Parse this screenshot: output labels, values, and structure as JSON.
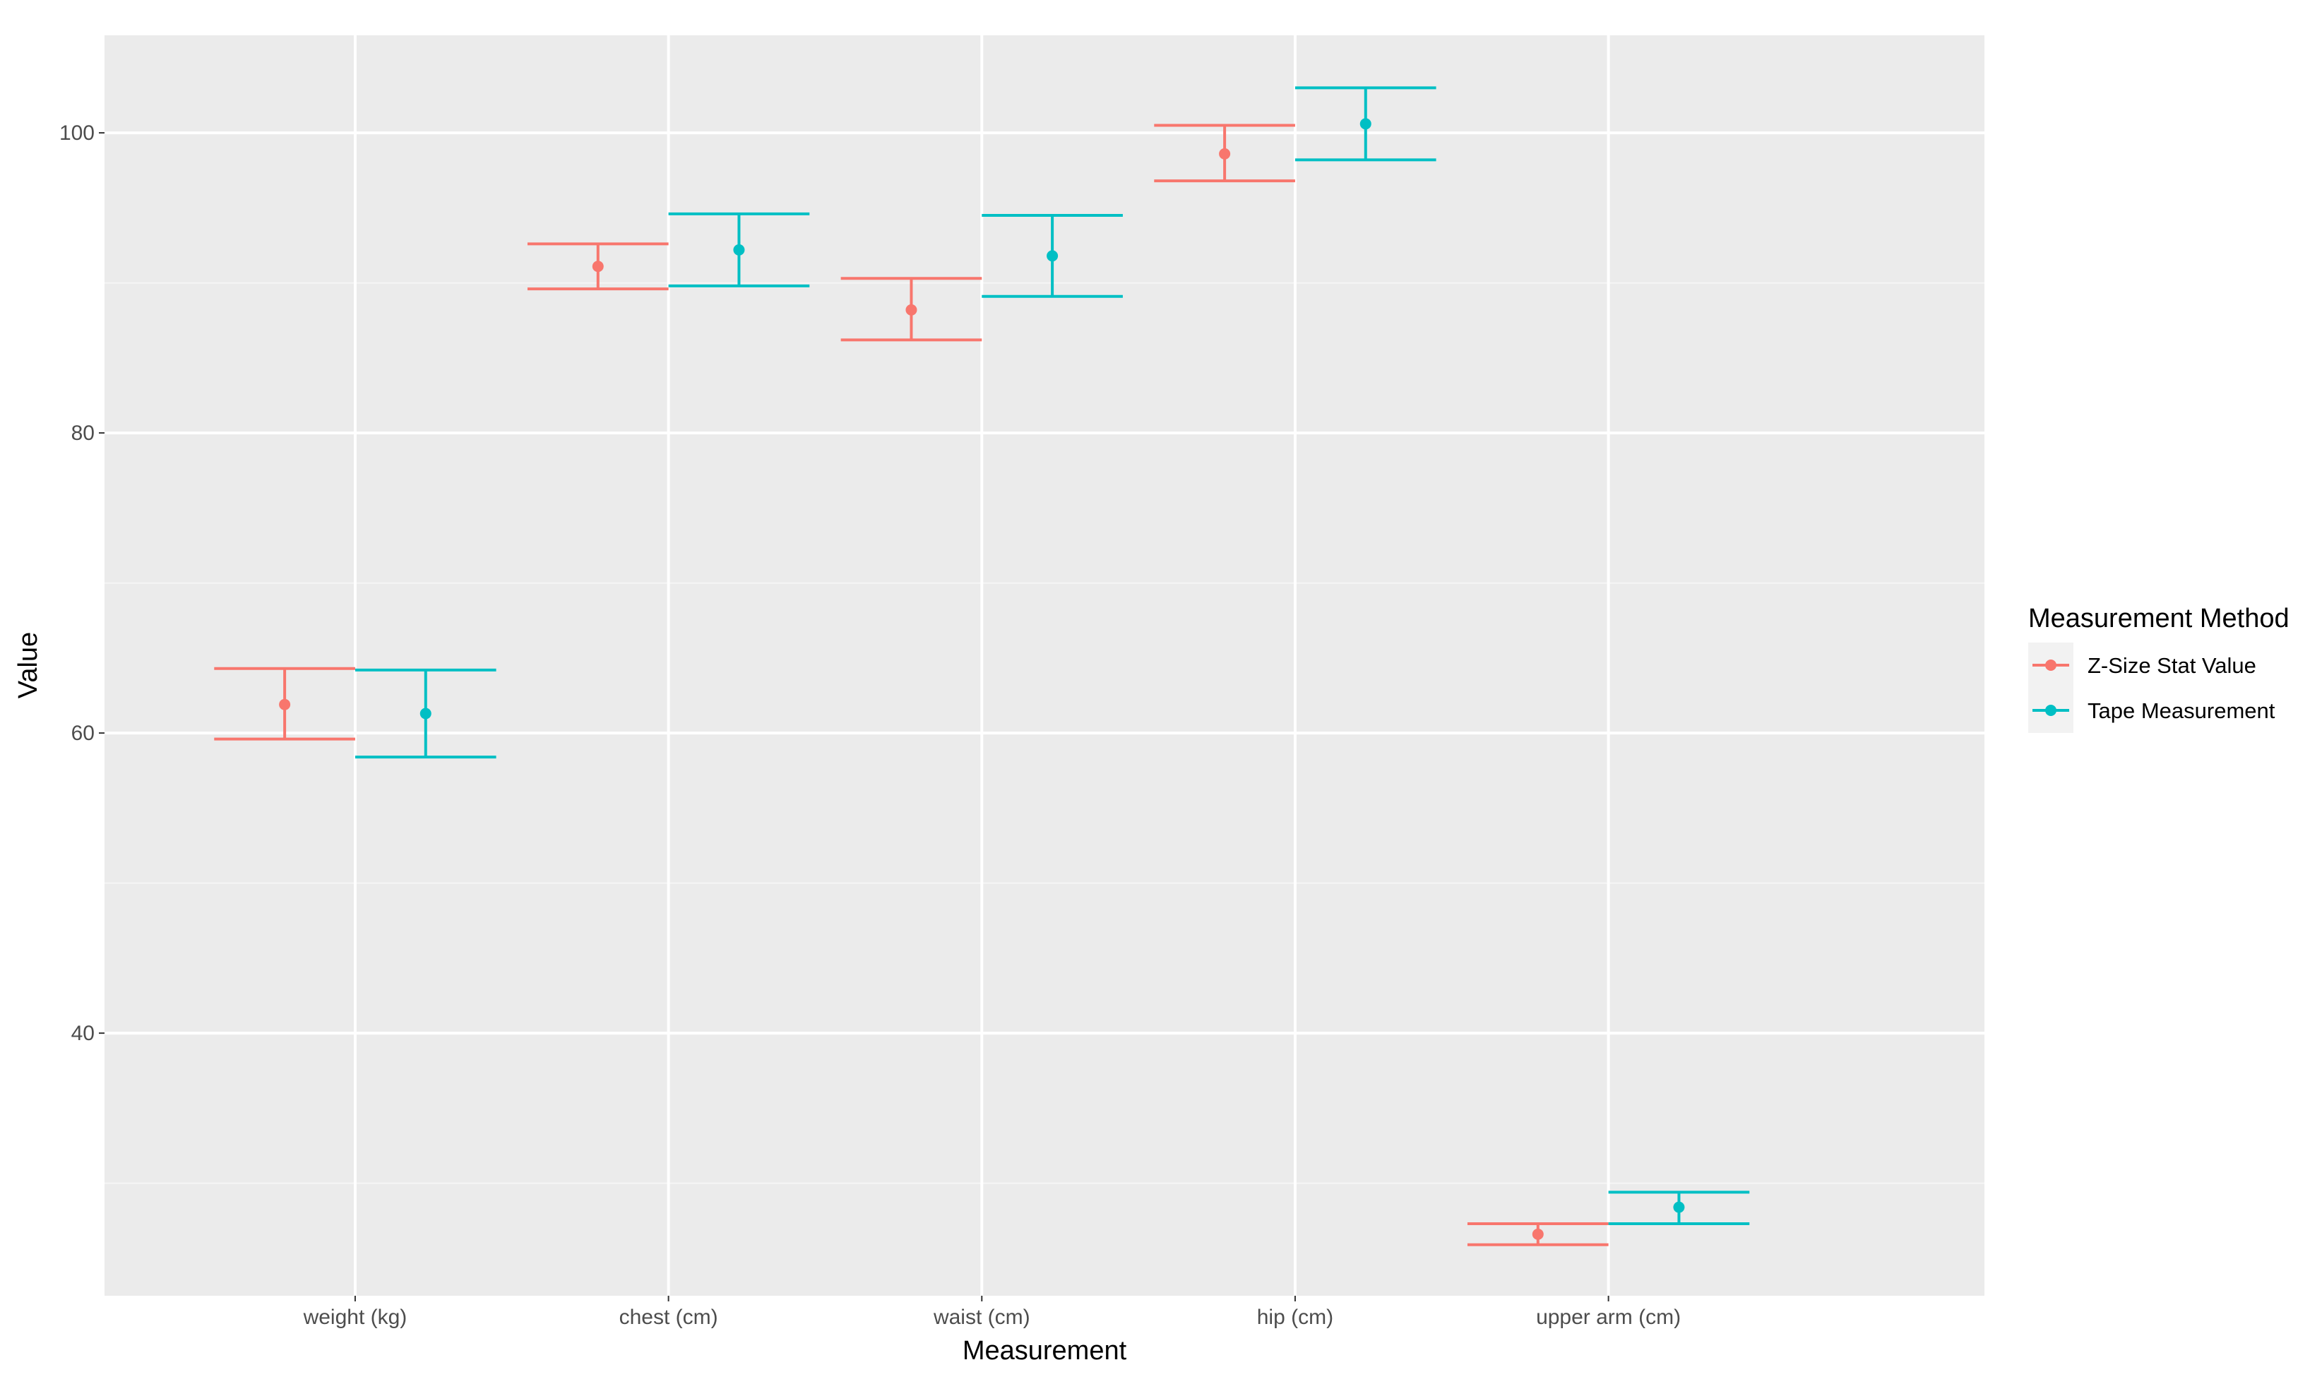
{
  "chart_data": {
    "type": "errorbar",
    "title": "",
    "xlabel": "Measurement",
    "ylabel": "Value",
    "ylim": [
      22.5,
      106.5
    ],
    "yticks": [
      40,
      60,
      80,
      100
    ],
    "y_minor_gridlines": [
      30,
      50,
      70,
      90
    ],
    "grid": true,
    "legend_title": "Measurement Method",
    "legend_position": "right",
    "categories": [
      "weight (kg)",
      "chest (cm)",
      "waist (cm)",
      "hip (cm)",
      "upper arm (cm)"
    ],
    "series": [
      {
        "name": "Z-Size Stat Value",
        "color": "#f8766d",
        "values": [
          61.9,
          91.1,
          88.2,
          98.6,
          26.6
        ],
        "lower": [
          59.6,
          89.6,
          86.2,
          96.8,
          25.9
        ],
        "upper": [
          64.3,
          92.6,
          90.3,
          100.5,
          27.3
        ]
      },
      {
        "name": "Tape Measurement",
        "color": "#00bfc4",
        "values": [
          61.3,
          92.2,
          91.8,
          100.6,
          28.4
        ],
        "lower": [
          58.4,
          89.8,
          89.1,
          98.2,
          27.3
        ],
        "upper": [
          64.2,
          94.6,
          94.5,
          103.0,
          29.4
        ]
      }
    ]
  },
  "colors": {
    "panel_background": "#ebebeb",
    "grid_major": "#ffffff",
    "grid_minor": "#f5f5f5"
  }
}
